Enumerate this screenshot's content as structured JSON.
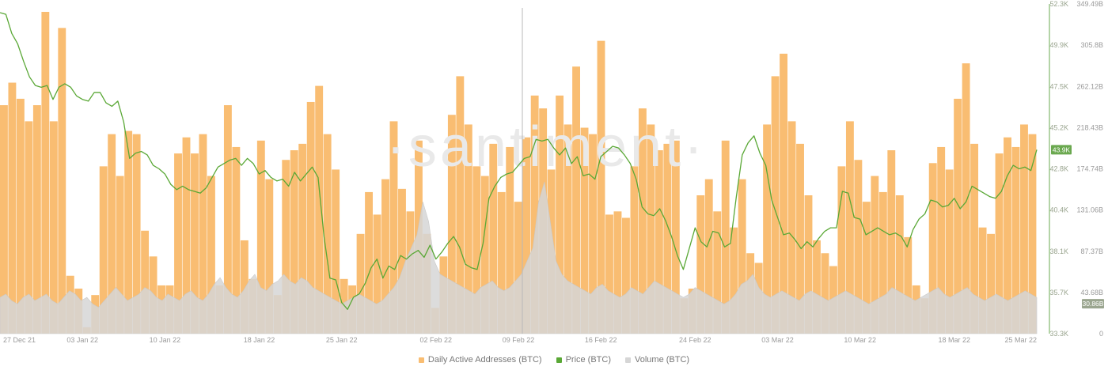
{
  "watermark": "·santiment·",
  "colors": {
    "addresses": "#f9bd72",
    "price": "#5aa836",
    "volume": "#d6d6d6",
    "volume_stroke": "#c9c9c9",
    "axis_line": "#6aa84f",
    "last_price_badge": "#6aa84f",
    "last_volume_badge": "#9aa58f",
    "watermark": "#e9e9e9"
  },
  "chart_data": {
    "type": "bar",
    "start_date": "2021-12-27",
    "end_date": "2022-03-25",
    "x_ticks": [
      "27 Dec 21",
      "03 Jan 22",
      "10 Jan 22",
      "18 Jan 22",
      "25 Jan 22",
      "02 Feb 22",
      "09 Feb 22",
      "16 Feb 22",
      "24 Feb 22",
      "03 Mar 22",
      "10 Mar 22",
      "18 Mar 22",
      "25 Mar 22"
    ],
    "price_axis": {
      "ticks": [
        "52.3K",
        "49.9K",
        "47.5K",
        "45.2K",
        "42.8K",
        "40.4K",
        "38.1K",
        "35.7K",
        "33.3K"
      ],
      "last_value_label": "43.9K"
    },
    "volume_axis": {
      "ticks": [
        "349.49B",
        "305.8B",
        "262.12B",
        "218.43B",
        "174.74B",
        "131.06B",
        "87.37B",
        "43.68B",
        "0"
      ],
      "last_value_label": "30.86B"
    },
    "series": [
      {
        "name": "Daily Active Addresses (BTC)",
        "kind": "bar",
        "values": [
          0.71,
          0.78,
          0.73,
          0.66,
          0.71,
          1.0,
          0.66,
          0.95,
          0.18,
          0.14,
          0.02,
          0.12,
          0.52,
          0.62,
          0.49,
          0.63,
          0.62,
          0.32,
          0.24,
          0.15,
          0.15,
          0.56,
          0.61,
          0.56,
          0.62,
          0.49,
          0.15,
          0.71,
          0.58,
          0.29,
          0.17,
          0.6,
          0.48,
          0.12,
          0.54,
          0.57,
          0.59,
          0.72,
          0.77,
          0.62,
          0.51,
          0.17,
          0.15,
          0.31,
          0.44,
          0.37,
          0.48,
          0.66,
          0.45,
          0.38,
          0.6,
          0.31,
          0.08,
          0.24,
          0.68,
          0.8,
          0.65,
          0.52,
          0.49,
          0.59,
          0.44,
          0.58,
          0.41,
          0.61,
          0.74,
          0.7,
          0.51,
          0.74,
          0.65,
          0.83,
          0.64,
          0.62,
          0.91,
          0.37,
          0.38,
          0.36,
          0.52,
          0.7,
          0.65,
          0.57,
          0.59,
          0.6,
          0.11,
          0.14,
          0.43,
          0.48,
          0.38,
          0.6,
          0.33,
          0.48,
          0.25,
          0.22,
          0.65,
          0.8,
          0.87,
          0.66,
          0.59,
          0.43,
          0.29,
          0.25,
          0.21,
          0.52,
          0.66,
          0.54,
          0.41,
          0.49,
          0.44,
          0.57,
          0.43,
          0.3,
          0.15,
          0.11,
          0.53,
          0.58,
          0.51,
          0.73,
          0.84,
          0.59,
          0.33,
          0.31,
          0.56,
          0.61,
          0.58,
          0.65,
          0.62
        ]
      },
      {
        "name": "Price (BTC)",
        "kind": "line",
        "values": [
          51.8,
          51.7,
          50.6,
          50.0,
          49.0,
          48.1,
          47.6,
          47.5,
          47.6,
          46.8,
          47.5,
          47.7,
          47.5,
          47.0,
          46.8,
          46.7,
          47.2,
          47.2,
          46.6,
          46.4,
          46.7,
          45.5,
          43.4,
          43.7,
          43.8,
          43.6,
          43.0,
          42.8,
          42.5,
          41.9,
          41.6,
          41.8,
          41.6,
          41.5,
          41.4,
          41.7,
          42.3,
          42.9,
          43.1,
          43.3,
          43.4,
          43.0,
          43.4,
          43.1,
          42.5,
          42.7,
          42.3,
          42.1,
          42.2,
          41.8,
          42.6,
          42.1,
          42.5,
          42.9,
          42.3,
          38.9,
          36.5,
          36.4,
          35.1,
          34.7,
          35.4,
          35.6,
          36.2,
          37.1,
          37.6,
          36.5,
          37.2,
          37.0,
          37.8,
          37.6,
          37.9,
          38.1,
          37.7,
          38.4,
          37.6,
          38.0,
          38.5,
          38.9,
          38.3,
          37.3,
          37.1,
          37.0,
          38.5,
          41.1,
          41.8,
          42.3,
          42.5,
          42.6,
          43.0,
          43.4,
          43.5,
          44.5,
          44.4,
          44.5,
          44.0,
          43.6,
          44.0,
          43.1,
          43.5,
          42.4,
          42.5,
          42.2,
          43.5,
          43.8,
          44.1,
          44.0,
          43.6,
          43.1,
          42.2,
          40.6,
          40.2,
          40.1,
          40.5,
          39.8,
          38.9,
          37.8,
          37.0,
          38.2,
          39.4,
          38.6,
          38.3,
          39.2,
          39.1,
          38.3,
          38.5,
          41.2,
          43.6,
          44.3,
          44.7,
          43.7,
          43.0,
          41.0,
          40.0,
          39.0,
          39.1,
          38.7,
          38.2,
          38.6,
          38.3,
          38.8,
          39.2,
          39.4,
          39.4,
          41.5,
          41.4,
          40.0,
          39.9,
          39.0,
          39.2,
          39.4,
          39.2,
          39.0,
          39.1,
          38.9,
          38.3,
          39.3,
          39.9,
          40.2,
          41.0,
          40.9,
          40.6,
          40.7,
          41.1,
          40.5,
          40.9,
          41.8,
          41.6,
          41.4,
          41.2,
          41.1,
          41.5,
          42.4,
          43.0,
          42.8,
          42.9,
          42.7,
          43.9
        ]
      },
      {
        "name": "Volume (BTC)",
        "kind": "area",
        "values": [
          0.11,
          0.12,
          0.1,
          0.09,
          0.11,
          0.12,
          0.1,
          0.11,
          0.12,
          0.1,
          0.09,
          0.11,
          0.13,
          0.12,
          0.1,
          0.11,
          0.09,
          0.08,
          0.1,
          0.12,
          0.14,
          0.12,
          0.1,
          0.11,
          0.12,
          0.14,
          0.13,
          0.11,
          0.1,
          0.12,
          0.11,
          0.1,
          0.12,
          0.13,
          0.11,
          0.1,
          0.12,
          0.15,
          0.17,
          0.14,
          0.12,
          0.11,
          0.13,
          0.16,
          0.18,
          0.14,
          0.13,
          0.15,
          0.16,
          0.18,
          0.16,
          0.15,
          0.17,
          0.16,
          0.14,
          0.13,
          0.12,
          0.11,
          0.1,
          0.09,
          0.1,
          0.11,
          0.12,
          0.11,
          0.1,
          0.09,
          0.1,
          0.12,
          0.14,
          0.17,
          0.22,
          0.26,
          0.3,
          0.4,
          0.34,
          0.22,
          0.18,
          0.17,
          0.16,
          0.15,
          0.14,
          0.13,
          0.12,
          0.14,
          0.15,
          0.16,
          0.14,
          0.13,
          0.14,
          0.16,
          0.18,
          0.22,
          0.26,
          0.4,
          0.46,
          0.34,
          0.22,
          0.18,
          0.16,
          0.15,
          0.14,
          0.13,
          0.12,
          0.14,
          0.15,
          0.13,
          0.12,
          0.11,
          0.12,
          0.14,
          0.13,
          0.12,
          0.14,
          0.16,
          0.15,
          0.14,
          0.13,
          0.12,
          0.11,
          0.12,
          0.14,
          0.13,
          0.12,
          0.11,
          0.1,
          0.09,
          0.1,
          0.12,
          0.15,
          0.16,
          0.18,
          0.14,
          0.12,
          0.11,
          0.12,
          0.13,
          0.12,
          0.11,
          0.1,
          0.12,
          0.13,
          0.12,
          0.11,
          0.1,
          0.11,
          0.12,
          0.13,
          0.12,
          0.11,
          0.1,
          0.09,
          0.1,
          0.11,
          0.12,
          0.14,
          0.13,
          0.12,
          0.11,
          0.1,
          0.11,
          0.12,
          0.13,
          0.14,
          0.12,
          0.11,
          0.12,
          0.13,
          0.14,
          0.12,
          0.11,
          0.1,
          0.11,
          0.12,
          0.11,
          0.1,
          0.11,
          0.12,
          0.13,
          0.12,
          0.11
        ]
      }
    ],
    "legend": {
      "placement": "bottom-center",
      "items": [
        "Daily Active Addresses (BTC)",
        "Price (BTC)",
        "Volume (BTC)"
      ]
    },
    "grid": false
  }
}
